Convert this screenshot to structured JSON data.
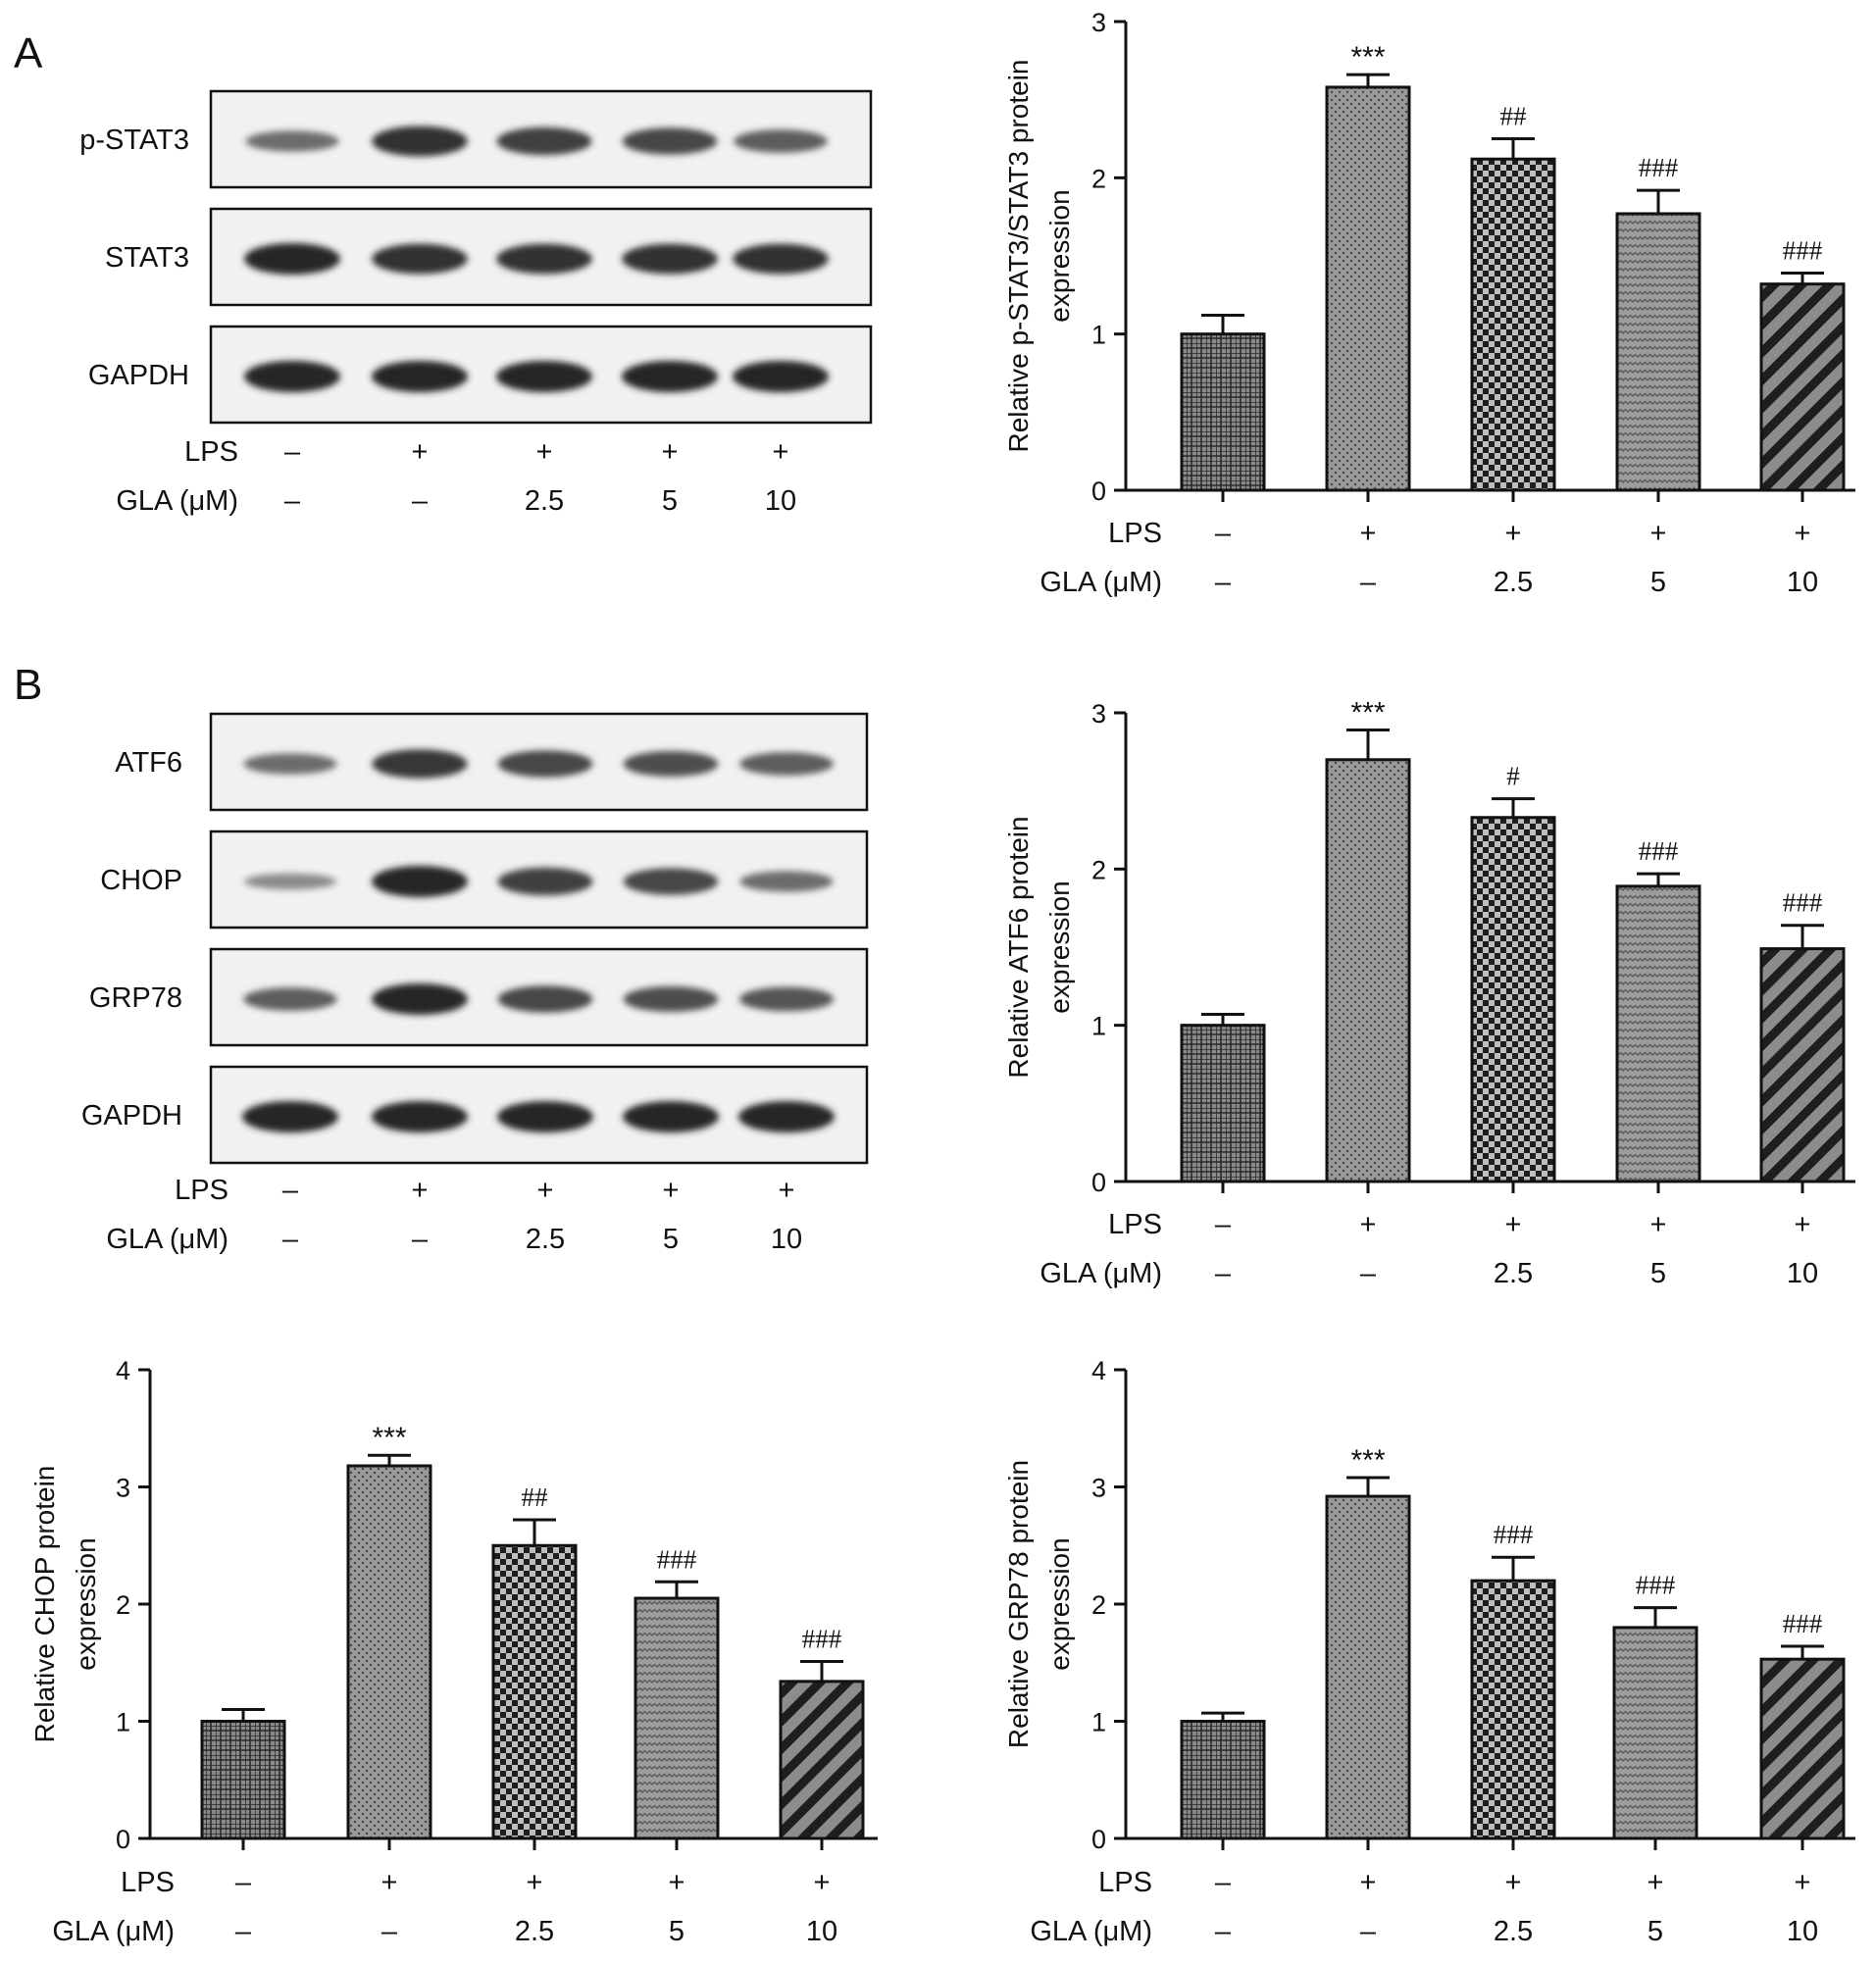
{
  "panels": {
    "A": "A",
    "B": "B"
  },
  "conditions": {
    "row_labels": [
      "LPS",
      "GLA (μM)"
    ],
    "lps": [
      "–",
      "+",
      "+",
      "+",
      "+"
    ],
    "gla": [
      "–",
      "–",
      "2.5",
      "5",
      "10"
    ]
  },
  "blots": [
    {
      "panel": "A",
      "bands": [
        {
          "name": "p-STAT3",
          "intensity": [
            0.55,
            0.95,
            0.85,
            0.8,
            0.65
          ]
        },
        {
          "name": "STAT3",
          "intensity": [
            1.0,
            0.95,
            0.95,
            0.95,
            0.95
          ]
        },
        {
          "name": "GAPDH",
          "intensity": [
            1.0,
            1.0,
            1.0,
            1.0,
            1.0
          ]
        }
      ]
    },
    {
      "panel": "B",
      "bands": [
        {
          "name": "ATF6",
          "intensity": [
            0.55,
            0.9,
            0.8,
            0.75,
            0.65
          ]
        },
        {
          "name": "CHOP",
          "intensity": [
            0.35,
            1.0,
            0.85,
            0.8,
            0.55
          ]
        },
        {
          "name": "GRP78",
          "intensity": [
            0.65,
            1.0,
            0.8,
            0.75,
            0.7
          ]
        },
        {
          "name": "GAPDH",
          "intensity": [
            1.0,
            1.0,
            1.0,
            1.0,
            1.0
          ]
        }
      ]
    }
  ],
  "chart_data": [
    {
      "type": "bar",
      "panel": "A",
      "ylabel": "Relative p-STAT3/STAT3 protein expression",
      "ylabel_lines": [
        "Relative p-STAT3/STAT3 protein",
        "expression"
      ],
      "ylim": [
        0,
        3
      ],
      "yticks": [
        "0",
        "1",
        "2",
        "3"
      ],
      "values": [
        1.0,
        2.58,
        2.12,
        1.77,
        1.32
      ],
      "errors": [
        0.12,
        0.08,
        0.13,
        0.15,
        0.07
      ],
      "annotations": [
        "",
        "***",
        "##",
        "###",
        "###"
      ]
    },
    {
      "type": "bar",
      "panel": "B",
      "ylabel": "Relative ATF6 protein expression",
      "ylabel_lines": [
        "Relative ATF6 protein",
        "expression"
      ],
      "ylim": [
        0,
        3
      ],
      "yticks": [
        "0",
        "1",
        "2",
        "3"
      ],
      "values": [
        1.0,
        2.7,
        2.33,
        1.89,
        1.49
      ],
      "errors": [
        0.07,
        0.19,
        0.12,
        0.08,
        0.15
      ],
      "annotations": [
        "",
        "***",
        "#",
        "###",
        "###"
      ]
    },
    {
      "type": "bar",
      "panel": "B",
      "ylabel": "Relative CHOP protein expression",
      "ylabel_lines": [
        "Relative CHOP protein",
        "expression"
      ],
      "ylim": [
        0,
        4
      ],
      "yticks": [
        "0",
        "1",
        "2",
        "3",
        "4"
      ],
      "values": [
        1.0,
        3.18,
        2.5,
        2.05,
        1.34
      ],
      "errors": [
        0.1,
        0.09,
        0.22,
        0.14,
        0.17
      ],
      "annotations": [
        "",
        "***",
        "##",
        "###",
        "###"
      ]
    },
    {
      "type": "bar",
      "panel": "B",
      "ylabel": "Relative GRP78 protein expression",
      "ylabel_lines": [
        "Relative GRP78 protein",
        "expression"
      ],
      "ylim": [
        0,
        4
      ],
      "yticks": [
        "0",
        "1",
        "2",
        "3",
        "4"
      ],
      "values": [
        1.0,
        2.92,
        2.2,
        1.8,
        1.53
      ],
      "errors": [
        0.07,
        0.16,
        0.2,
        0.17,
        0.11
      ],
      "annotations": [
        "",
        "***",
        "###",
        "###",
        "###"
      ]
    }
  ]
}
